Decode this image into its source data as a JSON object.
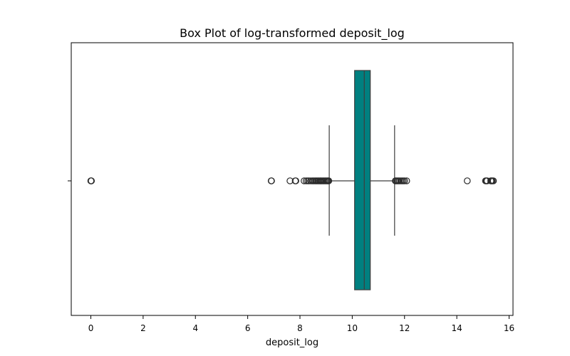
{
  "chart_data": {
    "type": "box",
    "title": "Box Plot of log-transformed deposit_log",
    "xlabel": "deposit_log",
    "ylabel": "",
    "orientation": "horizontal",
    "xlim": [
      -0.75,
      16.15
    ],
    "xticks": [
      0,
      2,
      4,
      6,
      8,
      10,
      12,
      14,
      16
    ],
    "grid": false,
    "box_color": "#008080",
    "line_color": "#3d3d3d",
    "stats": {
      "q1": 10.09,
      "median": 10.46,
      "q3": 10.69,
      "whisker_low": 9.12,
      "whisker_high": 11.62
    },
    "outliers": [
      0.0,
      0.01,
      0.02,
      6.9,
      6.91,
      7.62,
      7.82,
      7.84,
      8.16,
      8.24,
      8.3,
      8.35,
      8.42,
      8.48,
      8.52,
      8.57,
      8.61,
      8.65,
      8.69,
      8.73,
      8.77,
      8.8,
      8.84,
      8.88,
      8.92,
      8.96,
      9.0,
      9.04,
      9.07,
      9.1,
      11.65,
      11.68,
      11.72,
      11.76,
      11.8,
      11.85,
      11.9,
      11.95,
      12.0,
      12.08,
      14.4,
      15.1,
      15.13,
      15.16,
      15.3,
      15.33,
      15.36,
      15.4
    ]
  }
}
